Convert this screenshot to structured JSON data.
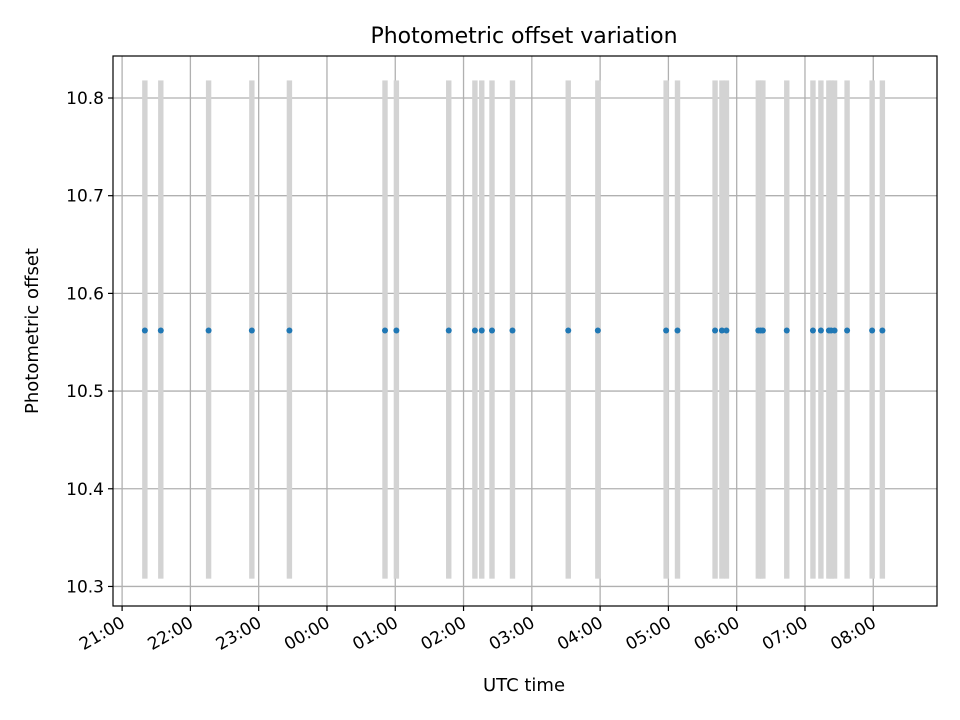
{
  "chart_data": {
    "type": "scatter",
    "title": "Photometric offset variation",
    "xlabel": "UTC time",
    "ylabel": "Photometric offset",
    "x_tick_labels": [
      "21:00",
      "22:00",
      "23:00",
      "00:00",
      "01:00",
      "02:00",
      "03:00",
      "04:00",
      "05:00",
      "06:00",
      "07:00",
      "08:00"
    ],
    "y_tick_labels": [
      "10.3",
      "10.4",
      "10.5",
      "10.6",
      "10.7",
      "10.8"
    ],
    "y_ticks": [
      10.3,
      10.4,
      10.5,
      10.6,
      10.7,
      10.8
    ],
    "xlim": [
      "20:52",
      "08:56"
    ],
    "ylim": [
      10.28,
      10.843
    ],
    "grid": true,
    "colors": {
      "points": "#1f77b4",
      "bands": "#d3d3d3",
      "grid": "#b0b0b0"
    },
    "band_y_range": [
      10.308,
      10.818
    ],
    "x": [
      "21:20",
      "21:34",
      "22:16",
      "22:54",
      "23:27",
      "00:51",
      "01:01",
      "01:47",
      "02:10",
      "02:16",
      "02:25",
      "02:43",
      "03:32",
      "03:58",
      "04:58",
      "05:08",
      "05:41",
      "05:47",
      "05:51",
      "06:19",
      "06:21",
      "06:23",
      "06:44",
      "07:07",
      "07:14",
      "07:21",
      "07:23",
      "07:26",
      "07:37",
      "07:59",
      "08:08"
    ],
    "y": [
      10.562,
      10.562,
      10.562,
      10.562,
      10.562,
      10.562,
      10.562,
      10.562,
      10.562,
      10.562,
      10.562,
      10.562,
      10.562,
      10.562,
      10.562,
      10.562,
      10.562,
      10.562,
      10.562,
      10.562,
      10.562,
      10.562,
      10.562,
      10.562,
      10.562,
      10.562,
      10.562,
      10.562,
      10.562,
      10.562,
      10.562
    ]
  }
}
